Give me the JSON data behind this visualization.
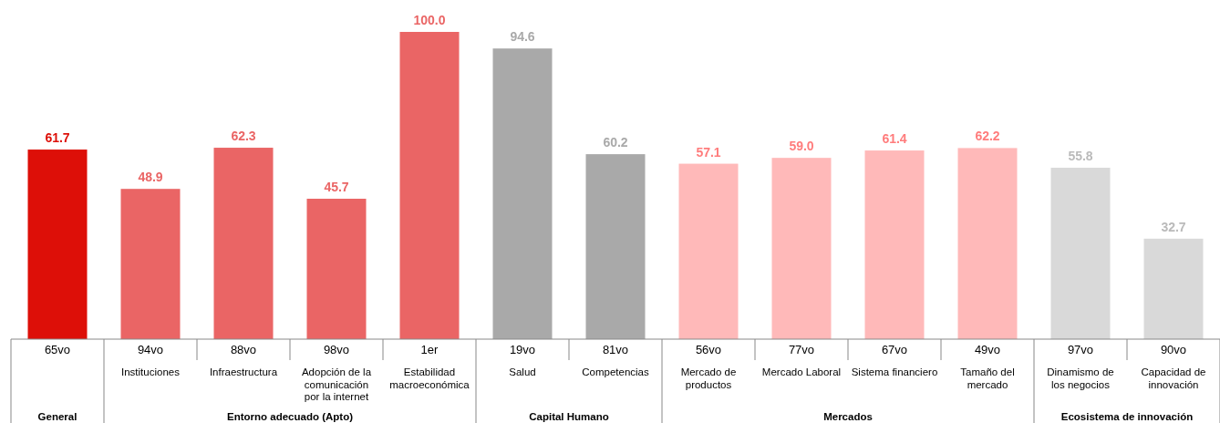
{
  "chart_data": {
    "type": "bar",
    "categories": [
      null,
      "Instituciones",
      "Infraestructura",
      "Adopción de la\ncomunicación\npor la internet",
      "Estabilidad\nmacroeconómica",
      "Salud",
      "Competencias",
      "Mercado de\nproductos",
      "Mercado Laboral",
      "Sistema financiero",
      "Tamaño del\nmercado",
      "Dinamismo de\nlos negocios",
      "Capacidad de\ninnovación"
    ],
    "values": [
      61.7,
      48.9,
      62.3,
      45.7,
      100.0,
      94.6,
      60.2,
      57.1,
      59.0,
      61.4,
      62.2,
      55.8,
      32.7
    ],
    "colors": [
      "#dd0f08",
      "#ea6565",
      "#ea6565",
      "#ea6565",
      "#ea6565",
      "#a9a9a9",
      "#a9a9a9",
      "#ffb9b9",
      "#ffb9b9",
      "#ffb9b9",
      "#ffb9b9",
      "#d9d9d9",
      "#d9d9d9"
    ],
    "value_labels": [
      "61.7",
      "48.9",
      "62.3",
      "45.7",
      "100.0",
      "94.6",
      "60.2",
      "57.1",
      "59.0",
      "61.4",
      "62.2",
      "55.8",
      "32.7"
    ],
    "annotations": [
      "65vo",
      "94vo",
      "88vo",
      "98vo",
      "1er",
      "19vo",
      "81vo",
      "56vo",
      "77vo",
      "67vo",
      "49vo",
      "97vo",
      "90vo",
      "General",
      "Entorno adecuado (Apto)",
      "Capital Humano",
      "Mercados",
      "Ecosistema de innovación"
    ]
  }
}
